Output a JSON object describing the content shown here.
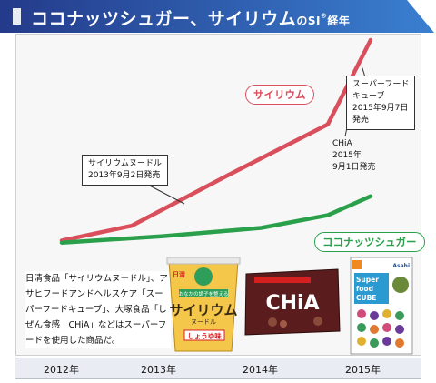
{
  "header": {
    "title_main": "ココナッツシュガー、サイリウム",
    "title_small": "のSI",
    "title_sup": "®",
    "title_end": "経年"
  },
  "chart_data": {
    "type": "line",
    "title": "ココナッツシュガー、サイリウムのSI®経年",
    "categories": [
      "2012年",
      "2013年",
      "2014年",
      "2015年"
    ],
    "x": [
      2012,
      2013,
      2014,
      2015
    ],
    "series": [
      {
        "name": "サイリウム",
        "color": "#d94f5c",
        "points": [
          [
            2012.0,
            5
          ],
          [
            2012.7,
            12
          ],
          [
            2013.67,
            36
          ],
          [
            2014.67,
            60
          ],
          [
            2015.1,
            100
          ]
        ]
      },
      {
        "name": "ココナッツシュガー",
        "color": "#2aa04a",
        "points": [
          [
            2012.0,
            4
          ],
          [
            2013.0,
            7
          ],
          [
            2014.0,
            11
          ],
          [
            2014.67,
            17
          ],
          [
            2015.1,
            26
          ]
        ]
      }
    ],
    "annotations": [
      {
        "lines": [
          "サイリウムヌードル",
          "2013年9月2日発売"
        ]
      },
      {
        "lines": [
          "スーパーフード",
          "キューブ",
          "2015年9月7日",
          "発売"
        ]
      },
      {
        "lines": [
          "CHiA",
          "2015年",
          "9月1日発売"
        ]
      }
    ],
    "grid": false,
    "legend": "inline"
  },
  "note": "日清食品「サイリウムヌードル」、アサヒフードアンドヘルスケア「スーパーフードキューブ」、大塚食品「しぜん食感　CHiA」などはスーパーフードを使用した商品だ。",
  "products": [
    {
      "kind": "cup-noodle",
      "icon": "cup-noodle-icon",
      "brand": "日清",
      "name": "サイリウム",
      "sub": "ヌードル",
      "flavor": "しょうゆ味",
      "tagline": "おなかの調子を整える"
    },
    {
      "kind": "chia-bar",
      "icon": "chia-bar-icon",
      "name": "CHiA"
    },
    {
      "kind": "superfood-pouch",
      "icon": "superfood-pouch-icon",
      "brand": "Asahi",
      "name_lines": [
        "Super",
        "food",
        "CUBE"
      ]
    }
  ]
}
